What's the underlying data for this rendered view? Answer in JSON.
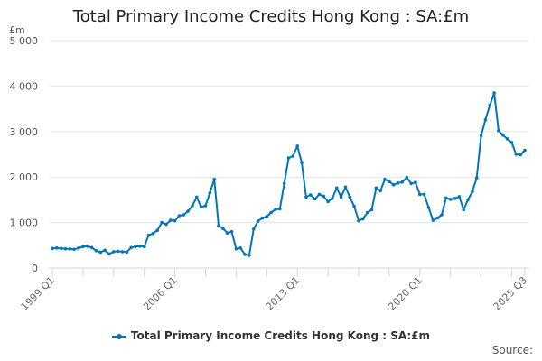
{
  "chart_data": {
    "type": "line",
    "title": "Total Primary Income Credits Hong Kong : SA:£m",
    "xlabel": "",
    "ylabel": "£m",
    "ylim": [
      0,
      5000
    ],
    "yticks": [
      "0",
      "1 000",
      "2 000",
      "3 000",
      "4 000",
      "5 000"
    ],
    "xtick_labels": [
      "1999 Q1",
      "2006 Q1",
      "2013 Q1",
      "2020 Q1",
      "2025 Q3"
    ],
    "grid": true,
    "legend_position": "bottom",
    "series": [
      {
        "name": "Total Primary Income Credits Hong Kong : SA:£m",
        "color": "#0077bb",
        "x_start": "1999 Q1",
        "x_end": "2025 Q3",
        "values": [
          430,
          440,
          430,
          420,
          420,
          410,
          440,
          470,
          480,
          450,
          380,
          350,
          390,
          310,
          360,
          370,
          360,
          350,
          450,
          470,
          480,
          470,
          720,
          760,
          830,
          1000,
          960,
          1050,
          1040,
          1150,
          1170,
          1250,
          1370,
          1560,
          1340,
          1370,
          1650,
          1950,
          930,
          870,
          770,
          800,
          420,
          440,
          300,
          280,
          860,
          1030,
          1100,
          1130,
          1220,
          1290,
          1300,
          1860,
          2420,
          2460,
          2680,
          2320,
          1560,
          1610,
          1520,
          1620,
          1580,
          1460,
          1530,
          1760,
          1560,
          1780,
          1560,
          1360,
          1040,
          1080,
          1220,
          1280,
          1760,
          1700,
          1950,
          1900,
          1830,
          1870,
          1890,
          1990,
          1860,
          1880,
          1620,
          1620,
          1330,
          1050,
          1100,
          1170,
          1540,
          1510,
          1530,
          1570,
          1280,
          1500,
          1680,
          1980,
          2910,
          3260,
          3580,
          3850,
          3020,
          2920,
          2840,
          2760,
          2500,
          2490,
          2590
        ]
      }
    ]
  },
  "header": {
    "title": "Total Primary Income Credits Hong Kong : SA:£m",
    "unit_label": "£m"
  },
  "legend": {
    "label": "Total Primary Income Credits Hong Kong : SA:£m"
  },
  "footer": {
    "source_label": "Source:"
  }
}
